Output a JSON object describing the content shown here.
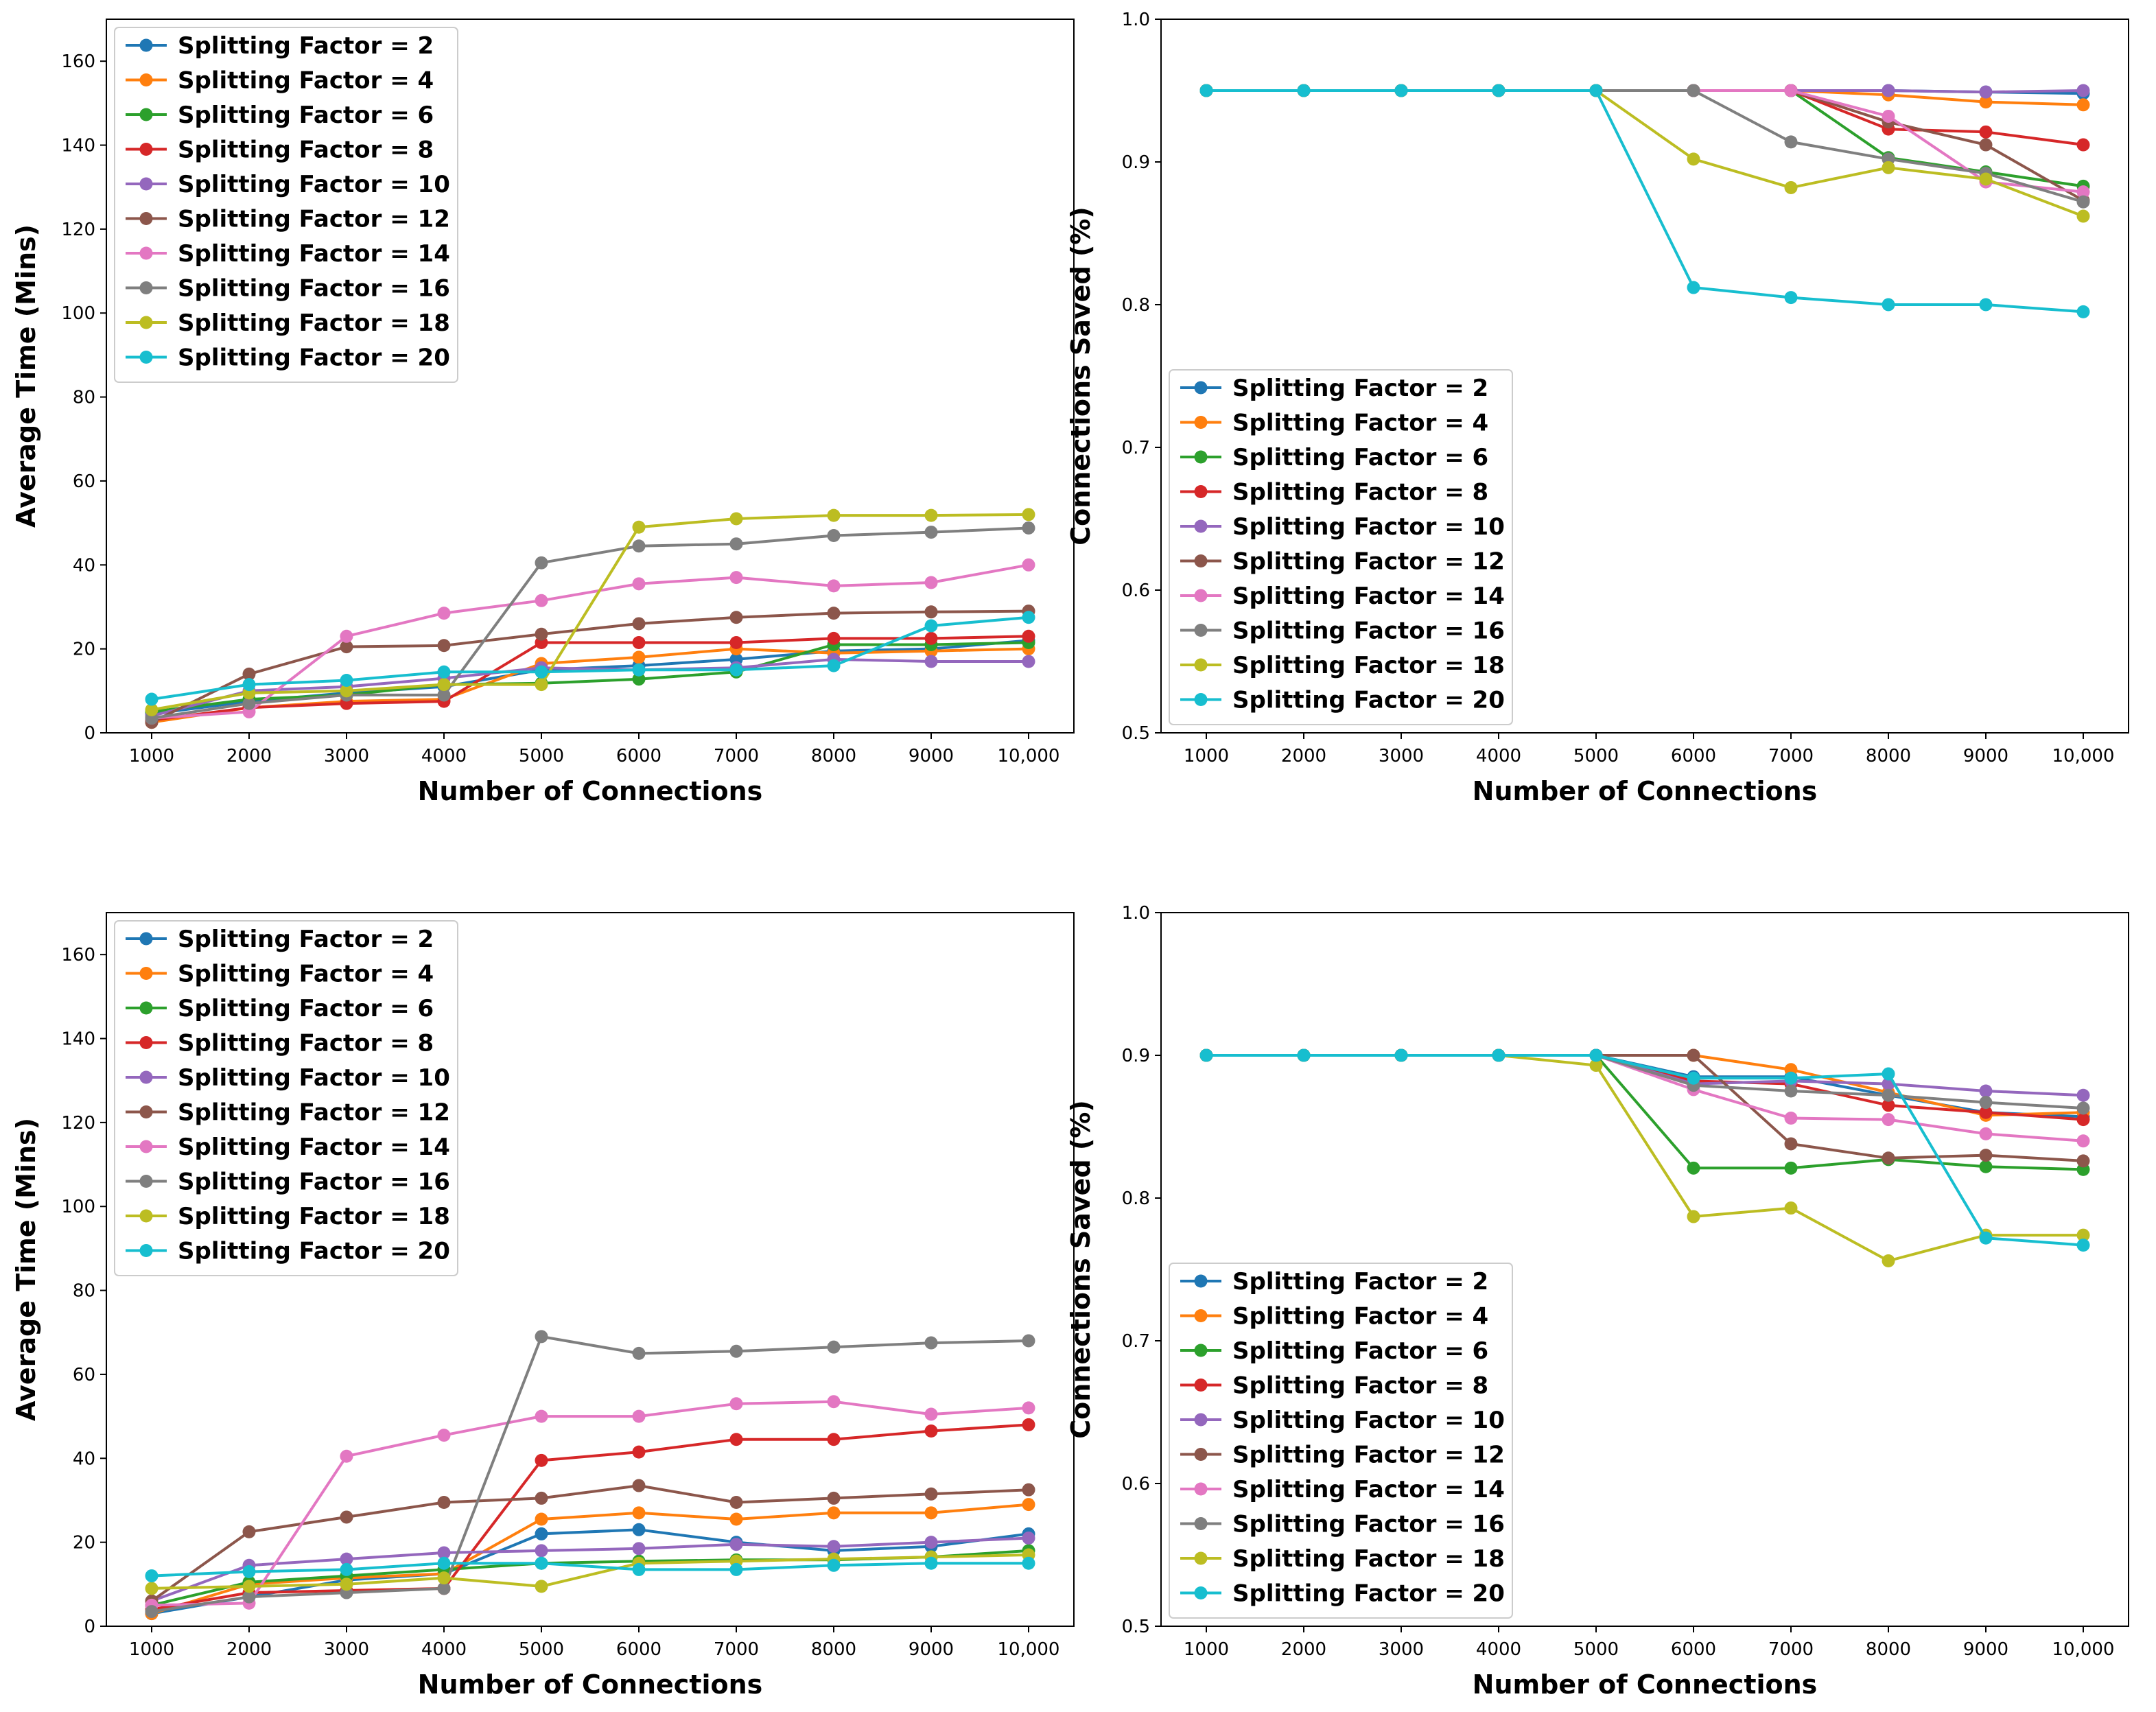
{
  "colors": [
    "#1f77b4",
    "#ff7f0e",
    "#2ca02c",
    "#d62728",
    "#9467bd",
    "#8c564b",
    "#e377c2",
    "#7f7f7f",
    "#bcbd22",
    "#17becf"
  ],
  "chart_data": [
    {
      "type": "line",
      "xlabel": "Number of Connections",
      "ylabel": "Average Time (Mins)",
      "xtick_labels": [
        "1000",
        "2000",
        "3000",
        "4000",
        "5000",
        "6000",
        "7000",
        "8000",
        "9000",
        "10,000"
      ],
      "ylim": [
        0,
        170
      ],
      "yticks": [
        0,
        20,
        40,
        60,
        80,
        100,
        120,
        140,
        160
      ],
      "ytick_labels": [
        "0",
        "20",
        "40",
        "60",
        "80",
        "100",
        "120",
        "140",
        "160"
      ],
      "legend_position": "top-left",
      "series": [
        {
          "name": "Splitting Factor = 2",
          "values": [
            4.5,
            7.5,
            9.5,
            11,
            15,
            16,
            17.5,
            19.5,
            20,
            22
          ]
        },
        {
          "name": "Splitting Factor = 4",
          "values": [
            2.5,
            6,
            7.5,
            8,
            16.5,
            18,
            20,
            19,
            19.5,
            20
          ]
        },
        {
          "name": "Splitting Factor = 6",
          "values": [
            5,
            8,
            9,
            11.5,
            11.8,
            12.8,
            14.5,
            21,
            21,
            21.5
          ]
        },
        {
          "name": "Splitting Factor = 8",
          "values": [
            3,
            6,
            7,
            7.5,
            21.5,
            21.5,
            21.5,
            22.5,
            22.5,
            23
          ]
        },
        {
          "name": "Splitting Factor = 10",
          "values": [
            4,
            10,
            11,
            13,
            15.5,
            15,
            15.5,
            17.5,
            17,
            17
          ]
        },
        {
          "name": "Splitting Factor = 12",
          "values": [
            2.5,
            14,
            20.5,
            20.8,
            23.5,
            26,
            27.5,
            28.5,
            28.8,
            29
          ]
        },
        {
          "name": "Splitting Factor = 14",
          "values": [
            3.5,
            5,
            23,
            28.5,
            31.5,
            35.5,
            37,
            35,
            35.8,
            40
          ]
        },
        {
          "name": "Splitting Factor = 16",
          "values": [
            3.5,
            7,
            9,
            9,
            40.5,
            44.5,
            45,
            47,
            47.8,
            48.8
          ]
        },
        {
          "name": "Splitting Factor = 18",
          "values": [
            5.5,
            9.5,
            10,
            11.5,
            11.5,
            49,
            51,
            51.8,
            51.8,
            52
          ]
        },
        {
          "name": "Splitting Factor = 20",
          "values": [
            8,
            11.5,
            12.5,
            14.5,
            14.5,
            15,
            15,
            16,
            25.5,
            27.5
          ]
        }
      ]
    },
    {
      "type": "line",
      "xlabel": "Number of Connections",
      "ylabel": "Connections Saved (%)",
      "xtick_labels": [
        "1000",
        "2000",
        "3000",
        "4000",
        "5000",
        "6000",
        "7000",
        "8000",
        "9000",
        "10,000"
      ],
      "ylim": [
        0.5,
        1.0
      ],
      "yticks": [
        0.5,
        0.6,
        0.7,
        0.8,
        0.9,
        1.0
      ],
      "ytick_labels": [
        "0.5",
        "0.6",
        "0.7",
        "0.8",
        "0.9",
        "1.0"
      ],
      "legend_position": "lower-left",
      "series": [
        {
          "name": "Splitting Factor = 2",
          "values": [
            0.95,
            0.95,
            0.95,
            0.95,
            0.95,
            0.95,
            0.95,
            0.95,
            0.949,
            0.948
          ]
        },
        {
          "name": "Splitting Factor = 4",
          "values": [
            0.95,
            0.95,
            0.95,
            0.95,
            0.95,
            0.95,
            0.95,
            0.947,
            0.942,
            0.94
          ]
        },
        {
          "name": "Splitting Factor = 6",
          "values": [
            0.95,
            0.95,
            0.95,
            0.95,
            0.95,
            0.95,
            0.95,
            0.903,
            0.893,
            0.883
          ]
        },
        {
          "name": "Splitting Factor = 8",
          "values": [
            0.95,
            0.95,
            0.95,
            0.95,
            0.95,
            0.95,
            0.95,
            0.923,
            0.921,
            0.912
          ]
        },
        {
          "name": "Splitting Factor = 10",
          "values": [
            0.95,
            0.95,
            0.95,
            0.95,
            0.95,
            0.95,
            0.95,
            0.95,
            0.949,
            0.95
          ]
        },
        {
          "name": "Splitting Factor = 12",
          "values": [
            0.95,
            0.95,
            0.95,
            0.95,
            0.95,
            0.95,
            0.95,
            0.928,
            0.912,
            0.873
          ]
        },
        {
          "name": "Splitting Factor = 14",
          "values": [
            0.95,
            0.95,
            0.95,
            0.95,
            0.95,
            0.95,
            0.95,
            0.932,
            0.886,
            0.879
          ]
        },
        {
          "name": "Splitting Factor = 16",
          "values": [
            0.95,
            0.95,
            0.95,
            0.95,
            0.95,
            0.95,
            0.914,
            0.902,
            0.892,
            0.872
          ]
        },
        {
          "name": "Splitting Factor = 18",
          "values": [
            0.95,
            0.95,
            0.95,
            0.95,
            0.95,
            0.902,
            0.882,
            0.896,
            0.888,
            0.862
          ]
        },
        {
          "name": "Splitting Factor = 20",
          "values": [
            0.95,
            0.95,
            0.95,
            0.95,
            0.95,
            0.812,
            0.805,
            0.8,
            0.8,
            0.795
          ]
        }
      ]
    },
    {
      "type": "line",
      "xlabel": "Number of Connections",
      "ylabel": "Average Time (Mins)",
      "xtick_labels": [
        "1000",
        "2000",
        "3000",
        "4000",
        "5000",
        "6000",
        "7000",
        "8000",
        "9000",
        "10,000"
      ],
      "ylim": [
        0,
        170
      ],
      "yticks": [
        0,
        20,
        40,
        60,
        80,
        100,
        120,
        140,
        160
      ],
      "ytick_labels": [
        "0",
        "20",
        "40",
        "60",
        "80",
        "100",
        "120",
        "140",
        "160"
      ],
      "legend_position": "top-left",
      "series": [
        {
          "name": "Splitting Factor = 2",
          "values": [
            3,
            7,
            11,
            12.5,
            22,
            23,
            20,
            18,
            19,
            22
          ]
        },
        {
          "name": "Splitting Factor = 4",
          "values": [
            3,
            10,
            11.5,
            12.5,
            25.5,
            27,
            25.5,
            27,
            27,
            29
          ]
        },
        {
          "name": "Splitting Factor = 6",
          "values": [
            5,
            10.5,
            12,
            13.5,
            15,
            15.5,
            15.8,
            15.8,
            16.5,
            18
          ]
        },
        {
          "name": "Splitting Factor = 8",
          "values": [
            4,
            8,
            8.5,
            9,
            39.5,
            41.5,
            44.5,
            44.5,
            46.5,
            48
          ]
        },
        {
          "name": "Splitting Factor = 10",
          "values": [
            6,
            14.5,
            16,
            17.5,
            18,
            18.5,
            19.5,
            19,
            20,
            21
          ]
        },
        {
          "name": "Splitting Factor = 12",
          "values": [
            6,
            22.5,
            26,
            29.5,
            30.5,
            33.5,
            29.5,
            30.5,
            31.5,
            32.5
          ]
        },
        {
          "name": "Splitting Factor = 14",
          "values": [
            5,
            5.5,
            40.5,
            45.5,
            50,
            50,
            53,
            53.5,
            50.5,
            52
          ]
        },
        {
          "name": "Splitting Factor = 16",
          "values": [
            3.5,
            7,
            8,
            9,
            69,
            65,
            65.5,
            66.5,
            67.5,
            68
          ]
        },
        {
          "name": "Splitting Factor = 18",
          "values": [
            9,
            9.5,
            10,
            11.5,
            9.5,
            15,
            15.5,
            16,
            16.5,
            17
          ]
        },
        {
          "name": "Splitting Factor = 20",
          "values": [
            12,
            13,
            13.5,
            15,
            15,
            13.5,
            13.5,
            14.5,
            15,
            15
          ]
        }
      ]
    },
    {
      "type": "line",
      "xlabel": "Number of Connections",
      "ylabel": "Connections Saved (%)",
      "xtick_labels": [
        "1000",
        "2000",
        "3000",
        "4000",
        "5000",
        "6000",
        "7000",
        "8000",
        "9000",
        "10,000"
      ],
      "ylim": [
        0.5,
        1.0
      ],
      "yticks": [
        0.5,
        0.6,
        0.7,
        0.8,
        0.9,
        1.0
      ],
      "ytick_labels": [
        "0.5",
        "0.6",
        "0.7",
        "0.8",
        "0.9",
        "1.0"
      ],
      "legend_position": "lower-left",
      "series": [
        {
          "name": "Splitting Factor = 2",
          "values": [
            0.9,
            0.9,
            0.9,
            0.9,
            0.9,
            0.885,
            0.885,
            0.872,
            0.86,
            0.857
          ]
        },
        {
          "name": "Splitting Factor = 4",
          "values": [
            0.9,
            0.9,
            0.9,
            0.9,
            0.9,
            0.9,
            0.89,
            0.874,
            0.858,
            0.86
          ]
        },
        {
          "name": "Splitting Factor = 6",
          "values": [
            0.9,
            0.9,
            0.9,
            0.9,
            0.9,
            0.821,
            0.821,
            0.827,
            0.822,
            0.82
          ]
        },
        {
          "name": "Splitting Factor = 8",
          "values": [
            0.9,
            0.9,
            0.9,
            0.9,
            0.9,
            0.882,
            0.88,
            0.865,
            0.86,
            0.855
          ]
        },
        {
          "name": "Splitting Factor = 10",
          "values": [
            0.9,
            0.9,
            0.9,
            0.9,
            0.9,
            0.88,
            0.882,
            0.88,
            0.875,
            0.872
          ]
        },
        {
          "name": "Splitting Factor = 12",
          "values": [
            0.9,
            0.9,
            0.9,
            0.9,
            0.9,
            0.9,
            0.838,
            0.828,
            0.83,
            0.826
          ]
        },
        {
          "name": "Splitting Factor = 14",
          "values": [
            0.9,
            0.9,
            0.9,
            0.9,
            0.9,
            0.876,
            0.856,
            0.855,
            0.845,
            0.84
          ]
        },
        {
          "name": "Splitting Factor = 16",
          "values": [
            0.9,
            0.9,
            0.9,
            0.9,
            0.9,
            0.879,
            0.875,
            0.872,
            0.867,
            0.863
          ]
        },
        {
          "name": "Splitting Factor = 18",
          "values": [
            0.9,
            0.9,
            0.9,
            0.9,
            0.893,
            0.787,
            0.793,
            0.756,
            0.774,
            0.774
          ]
        },
        {
          "name": "Splitting Factor = 20",
          "values": [
            0.9,
            0.9,
            0.9,
            0.9,
            0.9,
            0.884,
            0.884,
            0.887,
            0.772,
            0.767
          ]
        }
      ]
    }
  ]
}
